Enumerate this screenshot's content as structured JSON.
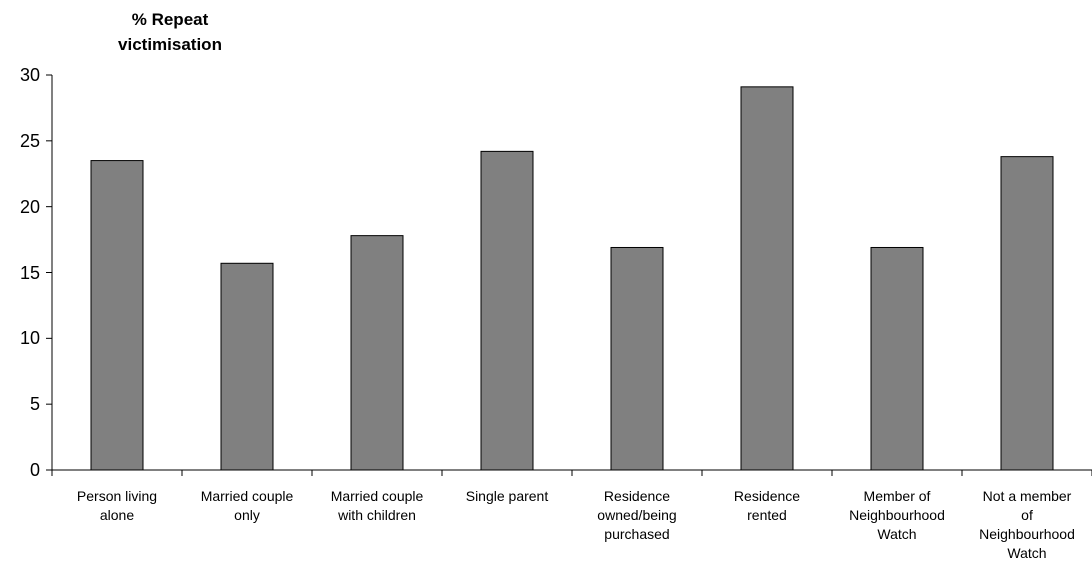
{
  "chart_data": {
    "type": "bar",
    "y_label": "% Repeat\nvictimisation",
    "categories": [
      "Person living\nalone",
      "Married couple\nonly",
      "Married couple\nwith children",
      "Single parent",
      "Residence\nowned/being\npurchased",
      "Residence\nrented",
      "Member of\nNeighbourhood\nWatch",
      "Not a member\nof\nNeighbourhood\nWatch"
    ],
    "values": [
      23.5,
      15.7,
      17.8,
      24.2,
      16.9,
      29.1,
      16.9,
      23.8
    ],
    "color": "#808080",
    "ylim": [
      0,
      30
    ],
    "yticks": [
      0,
      5,
      10,
      15,
      20,
      25,
      30
    ],
    "grid": false
  }
}
